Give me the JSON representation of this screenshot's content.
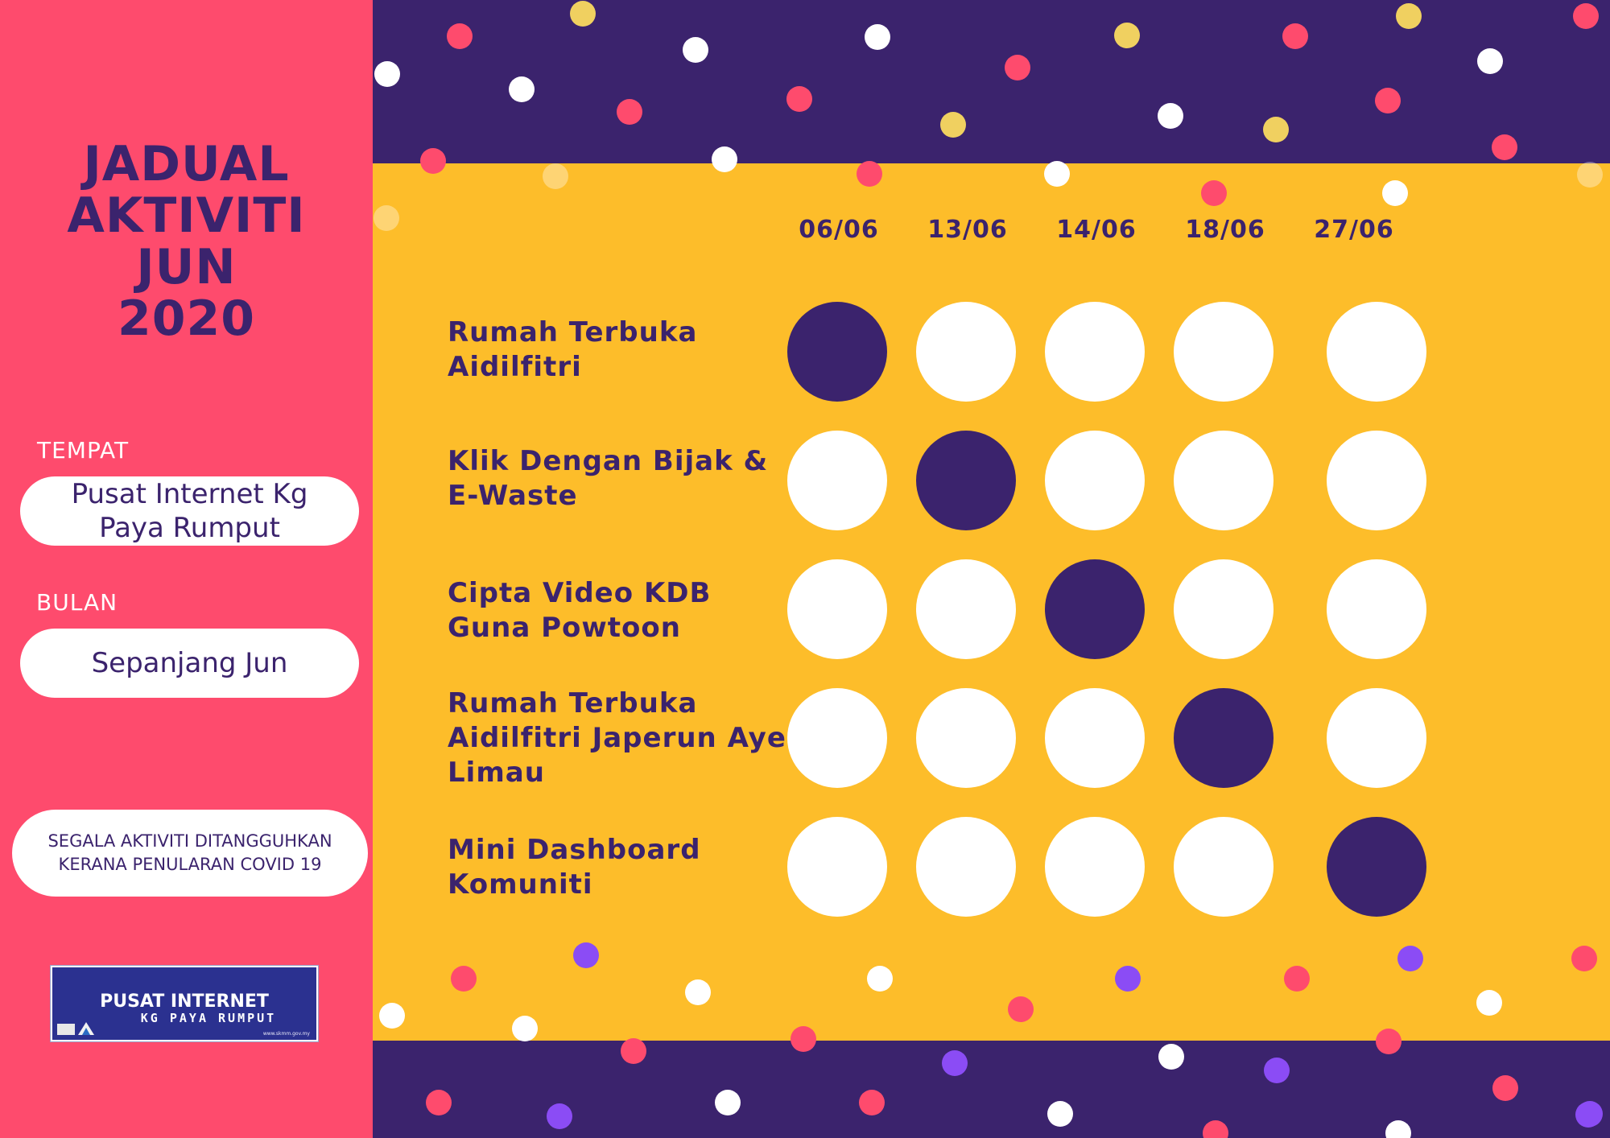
{
  "title": [
    "JADUAL",
    "AKTIVITI",
    "JUN",
    "2020"
  ],
  "tempat": {
    "label": "TEMPAT",
    "value_lines": [
      "Pusat Internet Kg",
      "Paya Rumput"
    ]
  },
  "bulan": {
    "label": "BULAN",
    "value": "Sepanjang Jun"
  },
  "notice_lines": [
    "SEGALA AKTIVITI DITANGGUHKAN",
    "KERANA PENULARAN COVID 19"
  ],
  "logo": {
    "line1": "PUSAT INTERNET",
    "line2": "KG PAYA RUMPUT",
    "url": "www.skmm.gov.my"
  },
  "dates": [
    "06/06",
    "13/06",
    "14/06",
    "18/06",
    "27/06"
  ],
  "activities": [
    {
      "name": "Rumah Terbuka\nAidilfitri",
      "date_index": 0
    },
    {
      "name": "Klik Dengan Bijak &\nE-Waste",
      "date_index": 1
    },
    {
      "name": "Cipta Video KDB\nGuna Powtoon",
      "date_index": 2
    },
    {
      "name": "Rumah Terbuka\nAidilfitri Japerun Ayer\nLimau",
      "date_index": 3
    },
    {
      "name": "Mini Dashboard\nKomuniti",
      "date_index": 4
    }
  ],
  "colors": {
    "primary": "#3b236d",
    "accent_pink": "#fe4b6d",
    "background_yellow": "#fdbd2a",
    "white": "#ffffff",
    "dot_gold": "#f0d060",
    "dot_violet": "#8b4cf5"
  }
}
